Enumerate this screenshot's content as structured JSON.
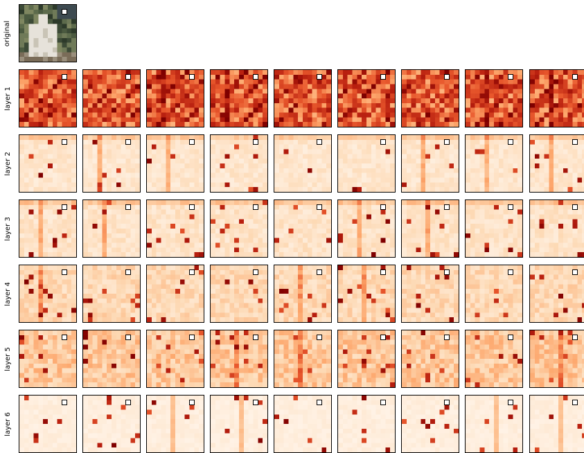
{
  "figure": {
    "rows": [
      {
        "label": "original"
      },
      {
        "label": "layer 1"
      },
      {
        "label": "layer 2"
      },
      {
        "label": "layer 3"
      },
      {
        "label": "layer 4"
      },
      {
        "label": "layer 5"
      },
      {
        "label": "layer 6"
      }
    ],
    "columns_per_layer_row": 9,
    "colormap": [
      "#fff5eb",
      "#fdd9b4",
      "#fda66b",
      "#e8572c",
      "#b81f0f",
      "#7f0000"
    ],
    "marker_color": "#000000"
  }
}
